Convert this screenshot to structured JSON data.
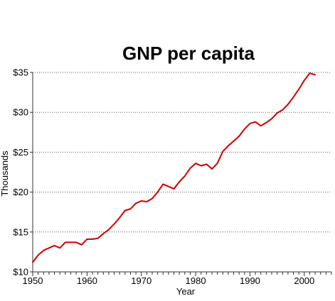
{
  "chart_data": {
    "type": "line",
    "title": "GNP per capita",
    "xlabel": "Year",
    "ylabel": "Thousands",
    "xlim": [
      1950,
      2005
    ],
    "ylim": [
      10,
      35
    ],
    "x_ticks": [
      1950,
      1960,
      1970,
      1980,
      1990,
      2000
    ],
    "x_tick_labels": [
      "1950",
      "1960",
      "1970",
      "1980",
      "1990",
      "2000"
    ],
    "y_ticks": [
      10,
      15,
      20,
      25,
      30,
      35
    ],
    "y_tick_labels": [
      "$10",
      "$15",
      "$20",
      "$25",
      "$30",
      "$35"
    ],
    "grid": "horizontal dotted",
    "series": [
      {
        "color": "#cc0000",
        "x": [
          1950,
          1951,
          1952,
          1953,
          1954,
          1955,
          1956,
          1957,
          1958,
          1959,
          1960,
          1961,
          1962,
          1963,
          1964,
          1965,
          1966,
          1967,
          1968,
          1969,
          1970,
          1971,
          1972,
          1973,
          1974,
          1975,
          1976,
          1977,
          1978,
          1979,
          1980,
          1981,
          1982,
          1983,
          1984,
          1985,
          1986,
          1987,
          1988,
          1989,
          1990,
          1991,
          1992,
          1993,
          1994,
          1995,
          1996,
          1997,
          1998,
          1999,
          2000,
          2001,
          2002
        ],
        "values": [
          11.2,
          12.1,
          12.7,
          13.0,
          13.3,
          13.0,
          13.7,
          13.7,
          13.7,
          13.4,
          14.1,
          14.1,
          14.2,
          14.8,
          15.3,
          16.0,
          16.8,
          17.7,
          17.9,
          18.6,
          18.9,
          18.8,
          19.2,
          20.0,
          21.0,
          20.7,
          20.4,
          21.3,
          22.0,
          23.0,
          23.6,
          23.3,
          23.5,
          22.9,
          23.6,
          25.1,
          25.8,
          26.4,
          27.0,
          27.9,
          28.6,
          28.8,
          28.3,
          28.7,
          29.2,
          29.9,
          30.3,
          31.0,
          31.9,
          32.9,
          34.0,
          34.9,
          34.7
        ]
      }
    ]
  }
}
